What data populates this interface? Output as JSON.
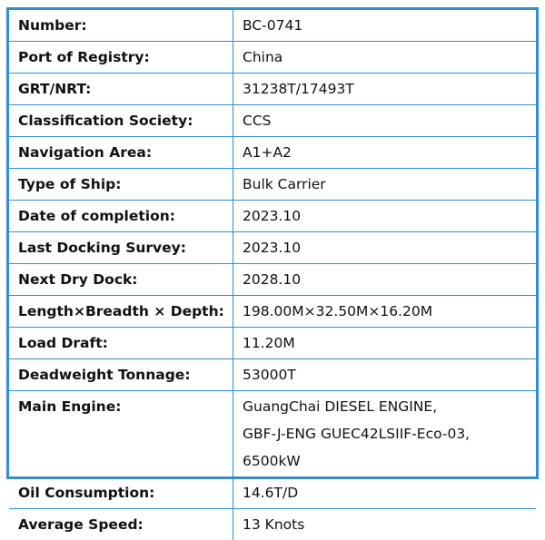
{
  "rows": [
    {
      "label": "Number:",
      "value": [
        "BC-0741"
      ]
    },
    {
      "label": "Port of Registry:",
      "value": [
        "China"
      ]
    },
    {
      "label": "GRT/NRT:",
      "value": [
        "31238T/17493T"
      ]
    },
    {
      "label": "Classification Society:",
      "value": [
        "CCS"
      ]
    },
    {
      "label": "Navigation Area:",
      "value": [
        "A1+A2"
      ]
    },
    {
      "label": "Type of Ship:",
      "value": [
        "Bulk Carrier"
      ]
    },
    {
      "label": "Date of completion:",
      "value": [
        "2023.10"
      ]
    },
    {
      "label": "Last Docking Survey:",
      "value": [
        "2023.10"
      ]
    },
    {
      "label": "Next Dry Dock:",
      "value": [
        "2028.10"
      ]
    },
    {
      "label": "Length×Breadth × Depth:",
      "value": [
        "198.00M×32.50M×16.20M"
      ]
    },
    {
      "label": "Load Draft:",
      "value": [
        "11.20M"
      ]
    },
    {
      "label": "Deadweight Tonnage:",
      "value": [
        "53000T"
      ]
    },
    {
      "label": "Main Engine:",
      "value": [
        "GuangChai DIESEL ENGINE,",
        "GBF-J-ENG GUEC42LSIIF-Eco-03,",
        "6500kW"
      ]
    },
    {
      "label": "Oil Consumption:",
      "value": [
        "14.6T/D"
      ]
    },
    {
      "label": "Average Speed:",
      "value": [
        "13 Knots"
      ]
    }
  ]
}
